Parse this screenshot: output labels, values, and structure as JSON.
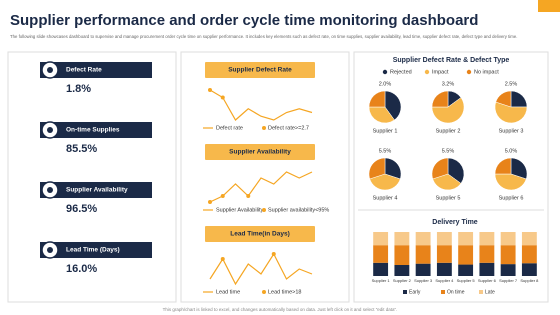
{
  "title": "Supplier performance and order cycle time monitoring dashboard",
  "description": "The following slide showcases dashboard to supervise and manage procurement order cycle time on supplier performance. It includes key elements such as defect rate, on time supplies, supplier availability, lead time, supplier defect rate, defect type and delivery time.",
  "kpis": [
    {
      "label": "Defect Rate",
      "value": "1.8%"
    },
    {
      "label": "On-time Supplies",
      "value": "85.5%"
    },
    {
      "label": "Supplier Availability",
      "value": "96.5%"
    },
    {
      "label": "Lead Time (Days)",
      "value": "16.0%"
    }
  ],
  "footer": "This graph/chart is linked to excel, and changes automatically based on data. Just left click on it and select \"edit data\".",
  "chart_data": [
    {
      "type": "line",
      "title": "Supplier Defect Rate",
      "series": [
        {
          "name": "Defect rate",
          "color": "#f5a623",
          "values": [
            3.0,
            2.8,
            2.2,
            2.5,
            2.3,
            2.2,
            2.4,
            2.5,
            2.4
          ]
        },
        {
          "name": "Defect rate>=2.7",
          "color": "#f5a623",
          "values": [
            3.0,
            2.8,
            null,
            null,
            null,
            null,
            null,
            null,
            null
          ]
        }
      ]
    },
    {
      "type": "line",
      "title": "Supplier Availability",
      "series": [
        {
          "name": "Supplier Availability",
          "color": "#f5a623",
          "values": [
            93,
            94,
            96,
            94,
            97,
            96,
            98,
            97,
            98
          ]
        },
        {
          "name": "Supplier availability<95%",
          "color": "#f5a623",
          "values": [
            93,
            94,
            null,
            94,
            null,
            null,
            null,
            null,
            null
          ]
        }
      ]
    },
    {
      "type": "line",
      "title": "Lead Time(in Days)",
      "series": [
        {
          "name": "Lead time",
          "color": "#f5a623",
          "values": [
            15,
            19,
            14,
            18,
            16,
            20,
            15,
            17,
            16
          ]
        },
        {
          "name": "Lead time>18",
          "color": "#f5a623",
          "values": [
            null,
            19,
            null,
            null,
            null,
            20,
            null,
            null,
            null
          ]
        }
      ]
    },
    {
      "type": "pie",
      "title": "Supplier Defect Rate & Defect Type",
      "slices": [
        {
          "name": "Rejected",
          "color": "#1b2a47"
        },
        {
          "name": "Impact",
          "color": "#f7b84b"
        },
        {
          "name": "No impact",
          "color": "#e8831a"
        }
      ],
      "pies": [
        {
          "name": "Supplier 1",
          "rate": 2.0,
          "rate_label": "2.0%",
          "values": [
            40,
            35,
            25
          ]
        },
        {
          "name": "Supplier 2",
          "rate": 3.2,
          "rate_label": "3.2%",
          "values": [
            15,
            60,
            25
          ]
        },
        {
          "name": "Supplier 3",
          "rate": 2.5,
          "rate_label": "2.5%",
          "values": [
            25,
            55,
            20
          ]
        },
        {
          "name": "Supplier 4",
          "rate": 5.5,
          "rate_label": "5.5%",
          "values": [
            30,
            40,
            30
          ]
        },
        {
          "name": "Supplier 5",
          "rate": 5.5,
          "rate_label": "5.5%",
          "values": [
            35,
            35,
            30
          ]
        },
        {
          "name": "Supplier 6",
          "rate": 5.0,
          "rate_label": "5.0%",
          "values": [
            30,
            45,
            25
          ]
        }
      ]
    },
    {
      "type": "bar",
      "title": "Delivery Time",
      "categories": [
        "Supplier 1",
        "Supplier 2",
        "Supplier 3",
        "Supplier 4",
        "Supplier 5",
        "Supplier 6",
        "Supplier 7",
        "Supplier 8"
      ],
      "series": [
        {
          "name": "Early",
          "color": "#1b2a47",
          "values": [
            30,
            25,
            28,
            30,
            26,
            30,
            27,
            29
          ]
        },
        {
          "name": "On time",
          "color": "#e8831a",
          "values": [
            40,
            45,
            42,
            40,
            44,
            40,
            43,
            41
          ]
        },
        {
          "name": "Late",
          "color": "#f7c98a",
          "values": [
            30,
            30,
            30,
            30,
            30,
            30,
            30,
            30
          ]
        }
      ]
    }
  ]
}
